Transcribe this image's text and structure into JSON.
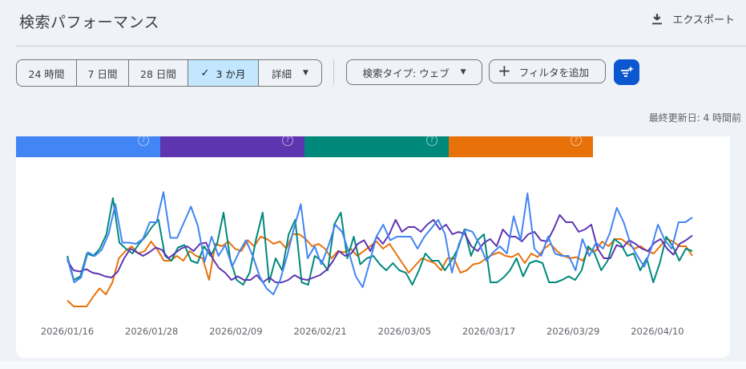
{
  "header": {
    "title": "検索パフォーマンス",
    "export_label": "エクスポート",
    "export_icon": "download-icon"
  },
  "date_range": {
    "options": [
      {
        "label": "24 時間",
        "selected": false
      },
      {
        "label": "7 日間",
        "selected": false
      },
      {
        "label": "28 日間",
        "selected": false
      },
      {
        "label": "3 か月",
        "selected": true
      },
      {
        "label": "詳細",
        "selected": false,
        "dropdown": true
      }
    ],
    "check_icon": "✓"
  },
  "filters": {
    "search_type_label": "検索タイプ: ウェブ",
    "add_filter_label": "フィルタを追加",
    "ai_filter_icon": "filter-sparkle-icon",
    "ai_filter_color": "#0b57d0"
  },
  "status": {
    "last_updated": "最終更新日: 4 時間前"
  },
  "metric_tabs": [
    {
      "color": "#4285f4",
      "help_icon": "?"
    },
    {
      "color": "#5e35b1",
      "help_icon": "?"
    },
    {
      "color": "#00897b",
      "help_icon": "?"
    },
    {
      "color": "#e8710a",
      "help_icon": "?"
    }
  ],
  "chart_data": {
    "type": "line",
    "title": "",
    "xlabel": "",
    "ylabel": "",
    "grid": false,
    "legend": "none (metric tabs above chart)",
    "x_tick_labels": [
      "2026/01/16",
      "2026/01/28",
      "2026/02/09",
      "2026/02/21",
      "2026/03/05",
      "2026/03/17",
      "2026/03/29",
      "2026/04/10"
    ],
    "x_range": [
      "2026/01/16",
      "2026/04/15"
    ],
    "y_scale": "normalized 0-100 (axis values hidden)",
    "series": [
      {
        "name": "blue",
        "color": "#4285f4",
        "values": [
          40,
          20,
          24,
          45,
          42,
          47,
          60,
          85,
          53,
          53,
          52,
          56,
          70,
          70,
          95,
          57,
          57,
          70,
          83,
          67,
          37,
          58,
          42,
          51,
          33,
          45,
          55,
          42,
          25,
          15,
          10,
          22,
          42,
          65,
          85,
          40,
          50,
          35,
          50,
          68,
          62,
          45,
          25,
          16,
          36,
          58,
          68,
          55,
          58,
          58,
          58,
          48,
          58,
          65,
          72,
          60,
          28,
          52,
          64,
          62,
          52,
          38,
          45,
          50,
          44,
          75,
          55,
          94,
          48,
          42,
          58,
          44,
          42,
          42,
          30,
          56,
          42,
          53,
          48,
          61,
          82,
          70,
          52,
          42,
          33,
          48,
          68,
          55,
          48,
          70,
          70,
          74
        ]
      },
      {
        "name": "purple",
        "color": "#5e35b1",
        "values": [
          38,
          30,
          29,
          31,
          28,
          27,
          25,
          24,
          29,
          40,
          48,
          45,
          42,
          45,
          49,
          47,
          40,
          44,
          48,
          50,
          46,
          52,
          53,
          40,
          32,
          28,
          22,
          25,
          22,
          22,
          26,
          20,
          24,
          20,
          20,
          22,
          26,
          23,
          22,
          24,
          26,
          30,
          37,
          46,
          42,
          44,
          52,
          55,
          46,
          58,
          52,
          60,
          72,
          62,
          66,
          66,
          62,
          68,
          72,
          64,
          68,
          60,
          62,
          60,
          50,
          46,
          53,
          56,
          50,
          64,
          58,
          58,
          54,
          60,
          62,
          55,
          54,
          64,
          76,
          70,
          70,
          62,
          64,
          68,
          48,
          40,
          40,
          51,
          49,
          55,
          52,
          48,
          46,
          53,
          56,
          48,
          43,
          52,
          55,
          59
        ]
      },
      {
        "name": "teal",
        "color": "#00897b",
        "values": [
          42,
          22,
          25,
          44,
          42,
          48,
          60,
          90,
          53,
          48,
          44,
          52,
          58,
          66,
          72,
          42,
          38,
          49,
          51,
          38,
          36,
          50,
          42,
          52,
          78,
          40,
          22,
          18,
          28,
          56,
          78,
          20,
          40,
          30,
          60,
          72,
          20,
          18,
          42,
          38,
          30,
          68,
          78,
          40,
          58,
          35,
          40,
          42,
          35,
          30,
          36,
          30,
          28,
          18,
          30,
          44,
          38,
          38,
          30,
          38,
          48,
          64,
          42,
          55,
          60,
          20,
          20,
          24,
          30,
          40,
          25,
          36,
          38,
          36,
          20,
          20,
          22,
          25,
          22,
          30,
          50,
          44,
          30,
          38,
          56,
          52,
          42,
          44,
          30,
          40,
          20,
          36,
          58,
          50,
          38,
          48,
          46
        ]
      },
      {
        "name": "orange",
        "color": "#e8710a",
        "values": [
          5,
          0,
          0,
          0,
          8,
          15,
          10,
          20,
          40,
          46,
          50,
          44,
          46,
          54,
          47,
          38,
          38,
          42,
          38,
          46,
          42,
          40,
          22,
          52,
          50,
          54,
          48,
          46,
          55,
          50,
          58,
          56,
          52,
          54,
          48,
          60,
          60,
          56,
          50,
          52,
          48,
          40,
          46,
          45,
          48,
          42,
          46,
          50,
          54,
          48,
          52,
          44,
          36,
          28,
          34,
          40,
          38,
          36,
          30,
          40,
          40,
          28,
          30,
          35,
          36,
          40,
          43,
          45,
          42,
          41,
          44,
          36,
          44,
          41,
          48,
          52,
          46,
          42,
          40,
          41,
          38,
          48,
          46,
          54,
          50,
          56,
          56,
          52,
          48,
          50,
          46,
          44,
          50,
          56,
          54,
          50,
          50,
          42
        ]
      }
    ]
  }
}
